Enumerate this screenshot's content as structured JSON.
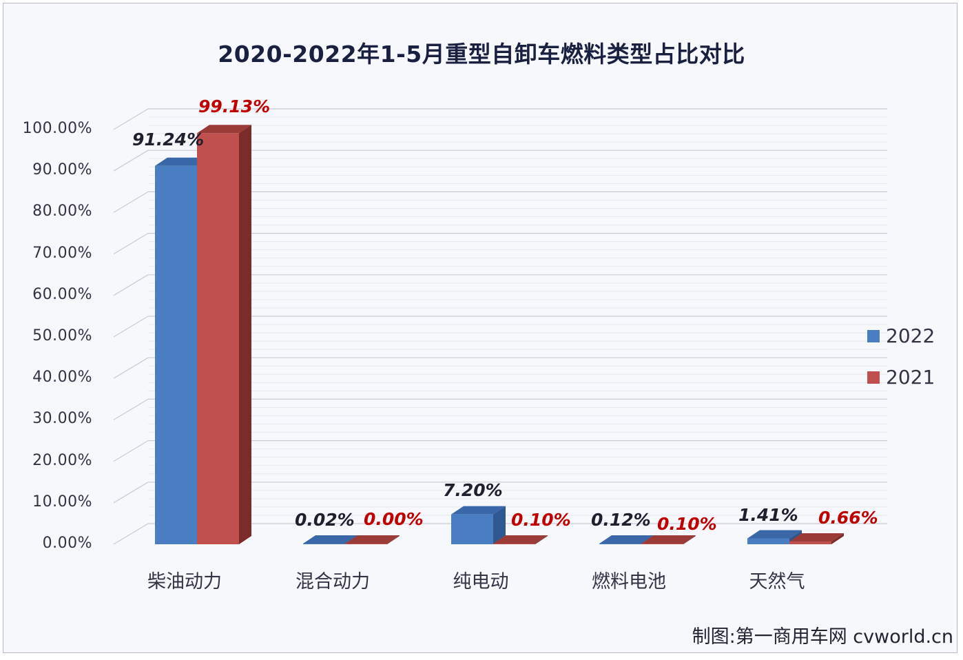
{
  "title": "2020-2022年1-5月重型自卸车燃料类型占比对比",
  "credit": "制图:第一商用车网 cvworld.cn",
  "colors": {
    "series_2022": "#4a7ec2",
    "series_2022_top": "#3a67a8",
    "series_2022_side": "#2f5790",
    "series_2021": "#c0504d",
    "series_2021_top": "#9a3b38",
    "series_2021_side": "#7b2c2a",
    "label_2022": "#1f1f2e",
    "label_2021": "#c00000",
    "grid": "#d4d6de",
    "background": "#f7f8fc"
  },
  "yaxis": {
    "ticks": [
      "100.00%",
      "90.00%",
      "80.00%",
      "70.00%",
      "60.00%",
      "50.00%",
      "40.00%",
      "30.00%",
      "20.00%",
      "10.00%",
      "0.00%"
    ]
  },
  "categories": [
    "柴油动力",
    "混合动力",
    "纯电动",
    "燃料电池",
    "天然气"
  ],
  "legend": [
    {
      "label": "2022",
      "color": "#4a7ec2"
    },
    {
      "label": "2021",
      "color": "#c0504d"
    }
  ],
  "labels": {
    "s2022": [
      "91.24%",
      "0.02%",
      "7.20%",
      "0.12%",
      "1.41%"
    ],
    "s2021": [
      "99.13%",
      "0.00%",
      "0.10%",
      "0.10%",
      "0.66%"
    ]
  },
  "chart_data": {
    "type": "bar",
    "title": "2020-2022年1-5月重型自卸车燃料类型占比对比",
    "xlabel": "",
    "ylabel": "",
    "ylim": [
      0,
      100
    ],
    "yticks": [
      "0.00%",
      "10.00%",
      "20.00%",
      "30.00%",
      "40.00%",
      "50.00%",
      "60.00%",
      "70.00%",
      "80.00%",
      "90.00%",
      "100.00%"
    ],
    "grid": true,
    "legend_position": "right",
    "style": "3d-clustered-column",
    "categories": [
      "柴油动力",
      "混合动力",
      "纯电动",
      "燃料电池",
      "天然气"
    ],
    "series": [
      {
        "name": "2022",
        "values": [
          91.24,
          0.02,
          7.2,
          0.12,
          1.41
        ]
      },
      {
        "name": "2021",
        "values": [
          99.13,
          0.0,
          0.1,
          0.1,
          0.66
        ]
      }
    ]
  }
}
